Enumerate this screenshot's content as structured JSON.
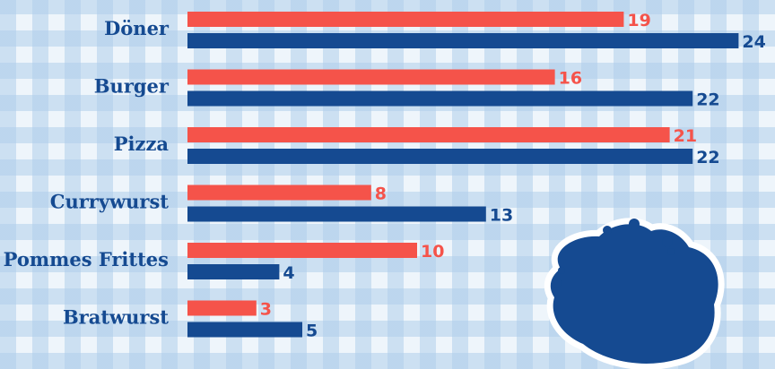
{
  "chart_data": {
    "type": "bar",
    "orientation": "horizontal",
    "categories": [
      "Döner",
      "Burger",
      "Pizza",
      "Currywurst",
      "Pommes Frittes",
      "Bratwurst"
    ],
    "series": [
      {
        "color": "#f5534a",
        "values": [
          19,
          16,
          21,
          8,
          10,
          3
        ]
      },
      {
        "color": "#154a91",
        "values": [
          24,
          22,
          22,
          13,
          4,
          5
        ]
      }
    ],
    "xlim": [
      0,
      24
    ],
    "grid": false,
    "legend": "none",
    "data_labels": true
  },
  "decoration": {
    "icon": "dish-food-icon",
    "color": "#154a91"
  }
}
